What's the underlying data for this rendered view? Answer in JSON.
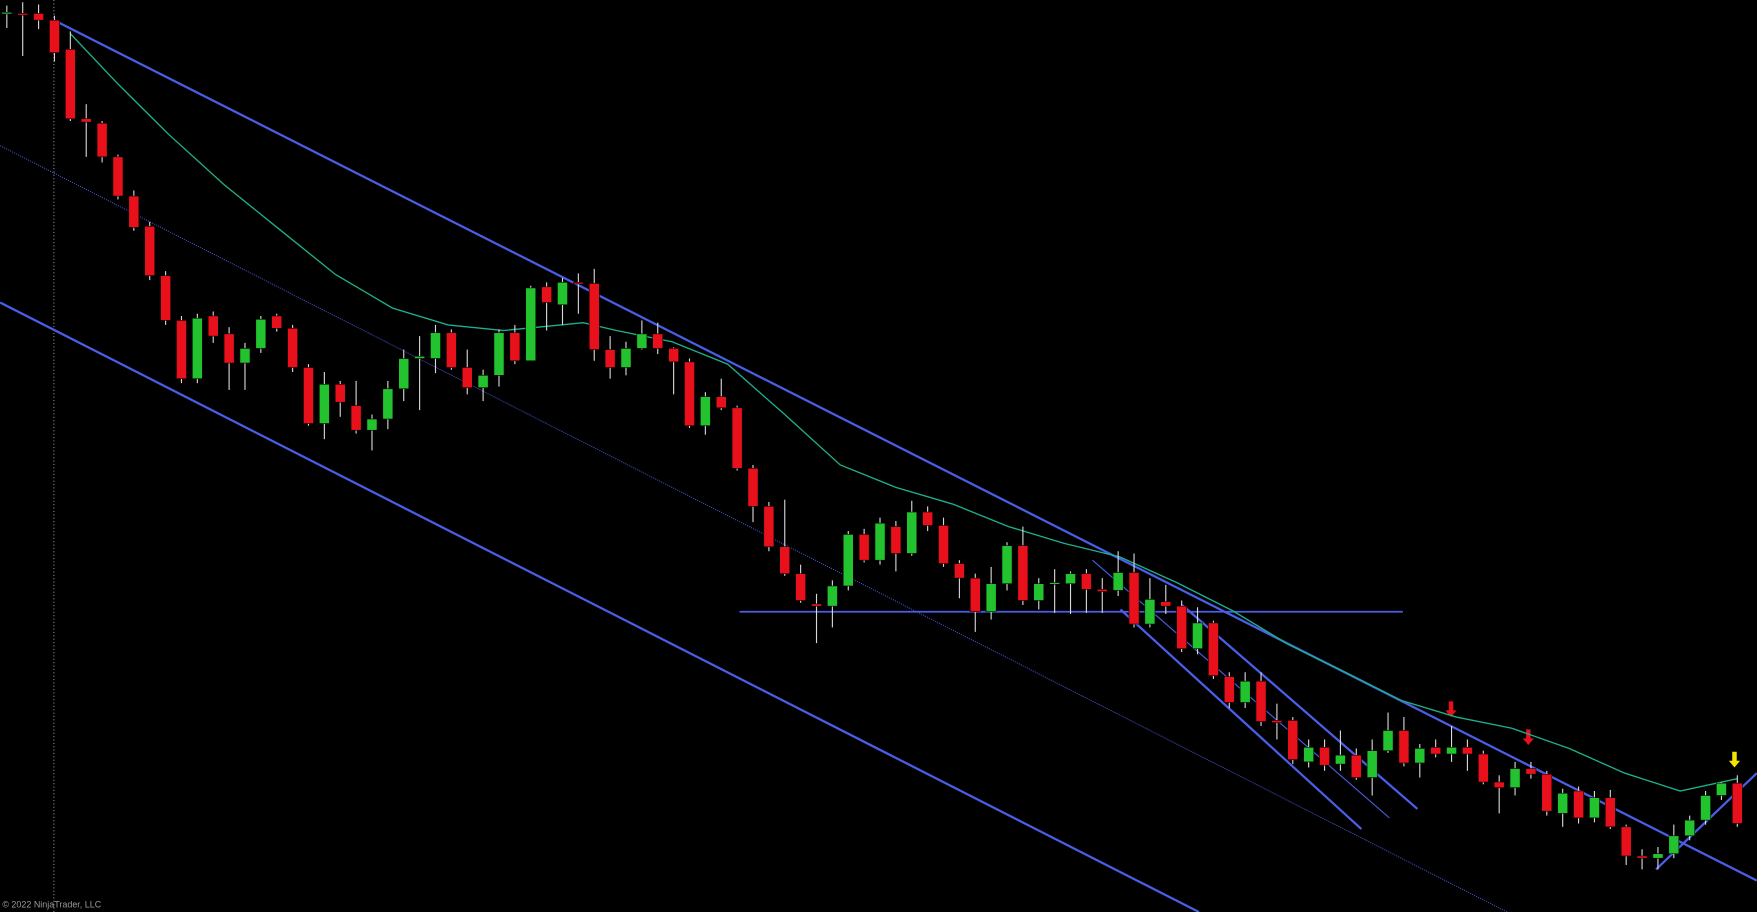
{
  "chart_data": {
    "type": "candlestick",
    "ylim": [
      0,
      814
    ],
    "up_color": "#22c32e",
    "down_color": "#e8101a",
    "ma_color": "#1fae8c",
    "copyright": "© 2022 NinjaTrader, LLC",
    "open": [
      802,
      802,
      802,
      796,
      770,
      708,
      704,
      674,
      639,
      612,
      568,
      528,
      476,
      532,
      516,
      490,
      503,
      532,
      521,
      486,
      436,
      471,
      452,
      430,
      440,
      467,
      494,
      494,
      517,
      486,
      468,
      479,
      517,
      492,
      558,
      542,
      562,
      561,
      502,
      486,
      503,
      516,
      503,
      491,
      434,
      460,
      450,
      396,
      362,
      326,
      302,
      275,
      273,
      291,
      337,
      314,
      344,
      320,
      357,
      345,
      311,
      298,
      268,
      293,
      327,
      278,
      293,
      293,
      302,
      288,
      287,
      303,
      257,
      277,
      273,
      235,
      258,
      210,
      187,
      206,
      171,
      171,
      134,
      147,
      132,
      140,
      120,
      144,
      162,
      133,
      147,
      141,
      147,
      141,
      116,
      111,
      128,
      123,
      88,
      108,
      84,
      102,
      76,
      50,
      48,
      52,
      68,
      82,
      104,
      115
    ],
    "high": [
      809,
      812,
      810,
      800,
      786,
      721,
      706,
      676,
      644,
      616,
      572,
      532,
      534,
      536,
      522,
      508,
      532,
      534,
      524,
      489,
      482,
      474,
      474,
      444,
      474,
      502,
      514,
      524,
      520,
      502,
      484,
      520,
      524,
      559,
      562,
      566,
      570,
      574,
      514,
      509,
      528,
      526,
      504,
      494,
      464,
      476,
      452,
      399,
      366,
      368,
      310,
      284,
      296,
      340,
      342,
      352,
      349,
      367,
      362,
      352,
      314,
      302,
      308,
      330,
      344,
      298,
      306,
      304,
      306,
      298,
      322,
      320,
      298,
      292,
      278,
      272,
      260,
      214,
      214,
      214,
      186,
      174,
      154,
      154,
      162,
      146,
      154,
      178,
      174,
      150,
      154,
      166,
      154,
      144,
      122,
      134,
      134,
      126,
      110,
      112,
      108,
      109,
      78,
      56,
      58,
      78,
      86,
      108,
      116,
      122
    ],
    "low": [
      789,
      764,
      788,
      759,
      706,
      674,
      669,
      636,
      608,
      564,
      524,
      472,
      472,
      508,
      466,
      466,
      499,
      518,
      482,
      434,
      422,
      442,
      427,
      412,
      431,
      456,
      448,
      481,
      484,
      462,
      456,
      469,
      489,
      492,
      519,
      524,
      534,
      492,
      476,
      479,
      502,
      498,
      462,
      432,
      426,
      448,
      394,
      348,
      322,
      300,
      276,
      240,
      254,
      287,
      312,
      310,
      304,
      318,
      340,
      308,
      280,
      250,
      261,
      287,
      274,
      270,
      267,
      266,
      267,
      267,
      282,
      254,
      254,
      266,
      232,
      230,
      208,
      182,
      182,
      166,
      154,
      132,
      129,
      126,
      126,
      118,
      104,
      142,
      130,
      120,
      138,
      134,
      126,
      114,
      88,
      104,
      119,
      86,
      76,
      79,
      80,
      74,
      42,
      38,
      38,
      48,
      64,
      78,
      100,
      76
    ],
    "close": [
      803,
      801,
      796,
      767,
      708,
      705,
      674,
      639,
      611,
      568,
      528,
      476,
      530,
      514,
      490,
      503,
      529,
      521,
      486,
      436,
      471,
      455,
      430,
      440,
      467,
      494,
      496,
      517,
      486,
      468,
      479,
      517,
      492,
      557,
      544,
      562,
      561,
      502,
      486,
      503,
      516,
      503,
      491,
      434,
      460,
      450,
      396,
      362,
      326,
      302,
      278,
      273,
      291,
      337,
      314,
      347,
      320,
      357,
      345,
      311,
      298,
      268,
      293,
      327,
      278,
      293,
      294,
      302,
      288,
      286,
      303,
      257,
      279,
      273,
      235,
      258,
      211,
      187,
      206,
      170,
      169,
      136,
      147,
      131,
      140,
      120,
      144,
      162,
      133,
      146,
      141,
      147,
      141,
      116,
      111,
      128,
      123,
      90,
      106,
      84,
      102,
      76,
      50,
      48,
      52,
      68,
      82,
      104,
      115,
      79
    ],
    "ma": {
      "x": [
        4.0,
        7.0,
        10.2,
        13.7,
        17.2,
        20.7,
        24.3,
        27.8,
        31.3,
        34.9,
        36.3,
        38.4,
        41.9,
        45.4,
        49.0,
        52.5,
        56.0,
        59.6,
        63.1,
        66.6,
        70.1,
        73.7,
        77.2,
        80.7,
        84.3,
        87.8,
        91.3,
        94.8,
        98.4,
        101.9,
        105.4,
        109.0
      ],
      "values": [
        784,
        739,
        694,
        649,
        609,
        569,
        539,
        524,
        519,
        524,
        526,
        519,
        509,
        489,
        444,
        399,
        379,
        364,
        344,
        329,
        317,
        294,
        269,
        239,
        214,
        189,
        174,
        164,
        146,
        124,
        108,
        119
      ]
    }
  }
}
